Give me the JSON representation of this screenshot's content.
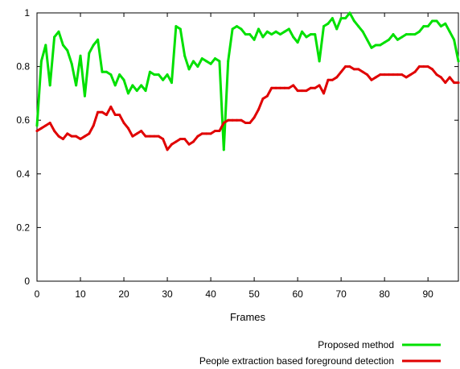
{
  "chart_data": {
    "type": "line",
    "title": "",
    "xlabel": "Frames",
    "ylabel": "",
    "xlim": [
      0,
      97
    ],
    "ylim": [
      0,
      1
    ],
    "x_ticks": [
      "0",
      "10",
      "20",
      "30",
      "40",
      "50",
      "60",
      "70",
      "80",
      "90"
    ],
    "y_ticks": [
      "0",
      "0.2",
      "0.4",
      "0.6",
      "0.8",
      "1"
    ],
    "grid": false,
    "legend_position": "bottom-right",
    "series": [
      {
        "name": "Proposed method",
        "color": "#00e000",
        "points": [
          [
            0,
            0.58
          ],
          [
            1,
            0.82
          ],
          [
            2,
            0.88
          ],
          [
            3,
            0.73
          ],
          [
            4,
            0.91
          ],
          [
            5,
            0.93
          ],
          [
            6,
            0.88
          ],
          [
            7,
            0.86
          ],
          [
            8,
            0.81
          ],
          [
            9,
            0.73
          ],
          [
            10,
            0.84
          ],
          [
            11,
            0.69
          ],
          [
            12,
            0.85
          ],
          [
            13,
            0.88
          ],
          [
            14,
            0.9
          ],
          [
            15,
            0.78
          ],
          [
            16,
            0.78
          ],
          [
            17,
            0.77
          ],
          [
            18,
            0.73
          ],
          [
            19,
            0.77
          ],
          [
            20,
            0.75
          ],
          [
            21,
            0.7
          ],
          [
            22,
            0.73
          ],
          [
            23,
            0.71
          ],
          [
            24,
            0.73
          ],
          [
            25,
            0.71
          ],
          [
            26,
            0.78
          ],
          [
            27,
            0.77
          ],
          [
            28,
            0.77
          ],
          [
            29,
            0.75
          ],
          [
            30,
            0.77
          ],
          [
            31,
            0.74
          ],
          [
            32,
            0.95
          ],
          [
            33,
            0.94
          ],
          [
            34,
            0.84
          ],
          [
            35,
            0.79
          ],
          [
            36,
            0.82
          ],
          [
            37,
            0.8
          ],
          [
            38,
            0.83
          ],
          [
            39,
            0.82
          ],
          [
            40,
            0.81
          ],
          [
            41,
            0.83
          ],
          [
            42,
            0.82
          ],
          [
            43,
            0.49
          ],
          [
            44,
            0.82
          ],
          [
            45,
            0.94
          ],
          [
            46,
            0.95
          ],
          [
            47,
            0.94
          ],
          [
            48,
            0.92
          ],
          [
            49,
            0.92
          ],
          [
            50,
            0.9
          ],
          [
            51,
            0.94
          ],
          [
            52,
            0.91
          ],
          [
            53,
            0.93
          ],
          [
            54,
            0.92
          ],
          [
            55,
            0.93
          ],
          [
            56,
            0.92
          ],
          [
            57,
            0.93
          ],
          [
            58,
            0.94
          ],
          [
            59,
            0.91
          ],
          [
            60,
            0.89
          ],
          [
            61,
            0.93
          ],
          [
            62,
            0.91
          ],
          [
            63,
            0.92
          ],
          [
            64,
            0.92
          ],
          [
            65,
            0.82
          ],
          [
            66,
            0.95
          ],
          [
            67,
            0.96
          ],
          [
            68,
            0.98
          ],
          [
            69,
            0.94
          ],
          [
            70,
            0.98
          ],
          [
            71,
            0.98
          ],
          [
            72,
            1.0
          ],
          [
            73,
            0.97
          ],
          [
            74,
            0.95
          ],
          [
            75,
            0.93
          ],
          [
            76,
            0.9
          ],
          [
            77,
            0.87
          ],
          [
            78,
            0.88
          ],
          [
            79,
            0.88
          ],
          [
            80,
            0.89
          ],
          [
            81,
            0.9
          ],
          [
            82,
            0.92
          ],
          [
            83,
            0.9
          ],
          [
            84,
            0.91
          ],
          [
            85,
            0.92
          ],
          [
            86,
            0.92
          ],
          [
            87,
            0.92
          ],
          [
            88,
            0.93
          ],
          [
            89,
            0.95
          ],
          [
            90,
            0.95
          ],
          [
            91,
            0.97
          ],
          [
            92,
            0.97
          ],
          [
            93,
            0.95
          ],
          [
            94,
            0.96
          ],
          [
            95,
            0.93
          ],
          [
            96,
            0.9
          ],
          [
            97,
            0.82
          ]
        ]
      },
      {
        "name": "People extraction based foreground detection",
        "color": "#e00000",
        "points": [
          [
            0,
            0.56
          ],
          [
            1,
            0.57
          ],
          [
            2,
            0.58
          ],
          [
            3,
            0.59
          ],
          [
            4,
            0.56
          ],
          [
            5,
            0.54
          ],
          [
            6,
            0.53
          ],
          [
            7,
            0.55
          ],
          [
            8,
            0.54
          ],
          [
            9,
            0.54
          ],
          [
            10,
            0.53
          ],
          [
            11,
            0.54
          ],
          [
            12,
            0.55
          ],
          [
            13,
            0.58
          ],
          [
            14,
            0.63
          ],
          [
            15,
            0.63
          ],
          [
            16,
            0.62
          ],
          [
            17,
            0.65
          ],
          [
            18,
            0.62
          ],
          [
            19,
            0.62
          ],
          [
            20,
            0.59
          ],
          [
            21,
            0.57
          ],
          [
            22,
            0.54
          ],
          [
            23,
            0.55
          ],
          [
            24,
            0.56
          ],
          [
            25,
            0.54
          ],
          [
            26,
            0.54
          ],
          [
            27,
            0.54
          ],
          [
            28,
            0.54
          ],
          [
            29,
            0.53
          ],
          [
            30,
            0.49
          ],
          [
            31,
            0.51
          ],
          [
            32,
            0.52
          ],
          [
            33,
            0.53
          ],
          [
            34,
            0.53
          ],
          [
            35,
            0.51
          ],
          [
            36,
            0.52
          ],
          [
            37,
            0.54
          ],
          [
            38,
            0.55
          ],
          [
            39,
            0.55
          ],
          [
            40,
            0.55
          ],
          [
            41,
            0.56
          ],
          [
            42,
            0.56
          ],
          [
            43,
            0.59
          ],
          [
            44,
            0.6
          ],
          [
            45,
            0.6
          ],
          [
            46,
            0.6
          ],
          [
            47,
            0.6
          ],
          [
            48,
            0.59
          ],
          [
            49,
            0.59
          ],
          [
            50,
            0.61
          ],
          [
            51,
            0.64
          ],
          [
            52,
            0.68
          ],
          [
            53,
            0.69
          ],
          [
            54,
            0.72
          ],
          [
            55,
            0.72
          ],
          [
            56,
            0.72
          ],
          [
            57,
            0.72
          ],
          [
            58,
            0.72
          ],
          [
            59,
            0.73
          ],
          [
            60,
            0.71
          ],
          [
            61,
            0.71
          ],
          [
            62,
            0.71
          ],
          [
            63,
            0.72
          ],
          [
            64,
            0.72
          ],
          [
            65,
            0.73
          ],
          [
            66,
            0.7
          ],
          [
            67,
            0.75
          ],
          [
            68,
            0.75
          ],
          [
            69,
            0.76
          ],
          [
            70,
            0.78
          ],
          [
            71,
            0.8
          ],
          [
            72,
            0.8
          ],
          [
            73,
            0.79
          ],
          [
            74,
            0.79
          ],
          [
            75,
            0.78
          ],
          [
            76,
            0.77
          ],
          [
            77,
            0.75
          ],
          [
            78,
            0.76
          ],
          [
            79,
            0.77
          ],
          [
            80,
            0.77
          ],
          [
            81,
            0.77
          ],
          [
            82,
            0.77
          ],
          [
            83,
            0.77
          ],
          [
            84,
            0.77
          ],
          [
            85,
            0.76
          ],
          [
            86,
            0.77
          ],
          [
            87,
            0.78
          ],
          [
            88,
            0.8
          ],
          [
            89,
            0.8
          ],
          [
            90,
            0.8
          ],
          [
            91,
            0.79
          ],
          [
            92,
            0.77
          ],
          [
            93,
            0.76
          ],
          [
            94,
            0.74
          ],
          [
            95,
            0.76
          ],
          [
            96,
            0.74
          ],
          [
            97,
            0.74
          ]
        ]
      }
    ]
  }
}
